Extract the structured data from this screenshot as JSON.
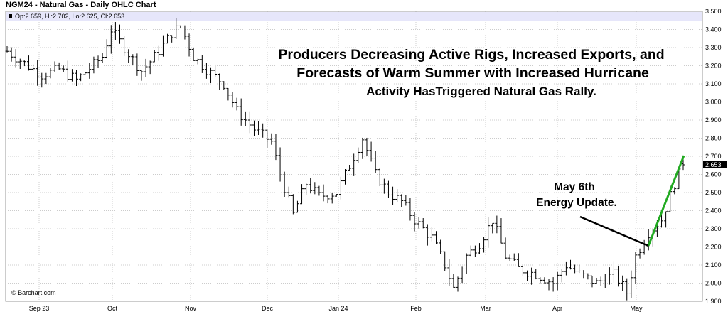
{
  "header": {
    "title": "NGM24 - Natural Gas - Daily OHLC Chart"
  },
  "info_bar": {
    "text": "Op:2.659, Hi:2.702, Lo:2.625, Cl:2.653"
  },
  "copyright": "© Barchart.com",
  "colors": {
    "bars": "#000000",
    "info_bar_bg": "#e6e6fa",
    "trend_line": "#22aa22",
    "arrow": "#000000",
    "grid": "#cccccc",
    "last_price_bg": "#000000"
  },
  "annotations": {
    "headline": [
      "Producers Decreasing Active Rigs, Increased Exports, and",
      "Forecasts of Warm Summer with Increased Hurricane",
      "Activity HasTriggered Natural Gas Rally."
    ],
    "callout": [
      "May 6th",
      "Energy Update."
    ]
  },
  "chart_data": {
    "type": "ohlc",
    "title": "NGM24 - Natural Gas - Daily OHLC Chart",
    "ylim": [
      1.9,
      3.5
    ],
    "y_ticks": [
      "1.900",
      "2.000",
      "2.100",
      "2.200",
      "2.300",
      "2.400",
      "2.500",
      "2.600",
      "2.700",
      "2.800",
      "2.900",
      "3.000",
      "3.100",
      "3.200",
      "3.300",
      "3.400",
      "3.500"
    ],
    "x_labels": [
      "Sep 23",
      "Oct",
      "Nov",
      "Dec",
      "Jan 24",
      "Feb",
      "Mar",
      "Apr",
      "May"
    ],
    "last_price": "2.653",
    "last_bar": {
      "open": 2.659,
      "high": 2.702,
      "low": 2.625,
      "close": 2.653
    },
    "grid": true,
    "price_path": [
      [
        0,
        3.28
      ],
      [
        6,
        3.18
      ],
      [
        8,
        3.15
      ],
      [
        12,
        3.18
      ],
      [
        16,
        3.12
      ],
      [
        22,
        3.25
      ],
      [
        24,
        3.4
      ],
      [
        27,
        3.3
      ],
      [
        31,
        3.17
      ],
      [
        34,
        3.25
      ],
      [
        38,
        3.38
      ],
      [
        40,
        3.42
      ],
      [
        43,
        3.25
      ],
      [
        46,
        3.18
      ],
      [
        50,
        3.1
      ],
      [
        53,
        2.95
      ],
      [
        57,
        2.85
      ],
      [
        61,
        2.78
      ],
      [
        63,
        2.6
      ],
      [
        66,
        2.38
      ],
      [
        69,
        2.55
      ],
      [
        72,
        2.48
      ],
      [
        76,
        2.5
      ],
      [
        80,
        2.7
      ],
      [
        82,
        2.8
      ],
      [
        85,
        2.6
      ],
      [
        88,
        2.5
      ],
      [
        91,
        2.45
      ],
      [
        94,
        2.35
      ],
      [
        98,
        2.25
      ],
      [
        101,
        2.1
      ],
      [
        103,
        1.97
      ],
      [
        106,
        2.15
      ],
      [
        109,
        2.22
      ],
      [
        112,
        2.35
      ],
      [
        115,
        2.15
      ],
      [
        118,
        2.08
      ],
      [
        122,
        2.05
      ],
      [
        126,
        2.0
      ],
      [
        129,
        2.1
      ],
      [
        132,
        2.05
      ],
      [
        136,
        2.0
      ],
      [
        140,
        2.05
      ],
      [
        143,
        1.95
      ],
      [
        145,
        2.15
      ],
      [
        148,
        2.28
      ],
      [
        151,
        2.35
      ],
      [
        154,
        2.55
      ],
      [
        156,
        2.65
      ]
    ],
    "series": [
      {
        "name": "",
        "type": "ohlc",
        "n_bars": 157
      }
    ]
  }
}
